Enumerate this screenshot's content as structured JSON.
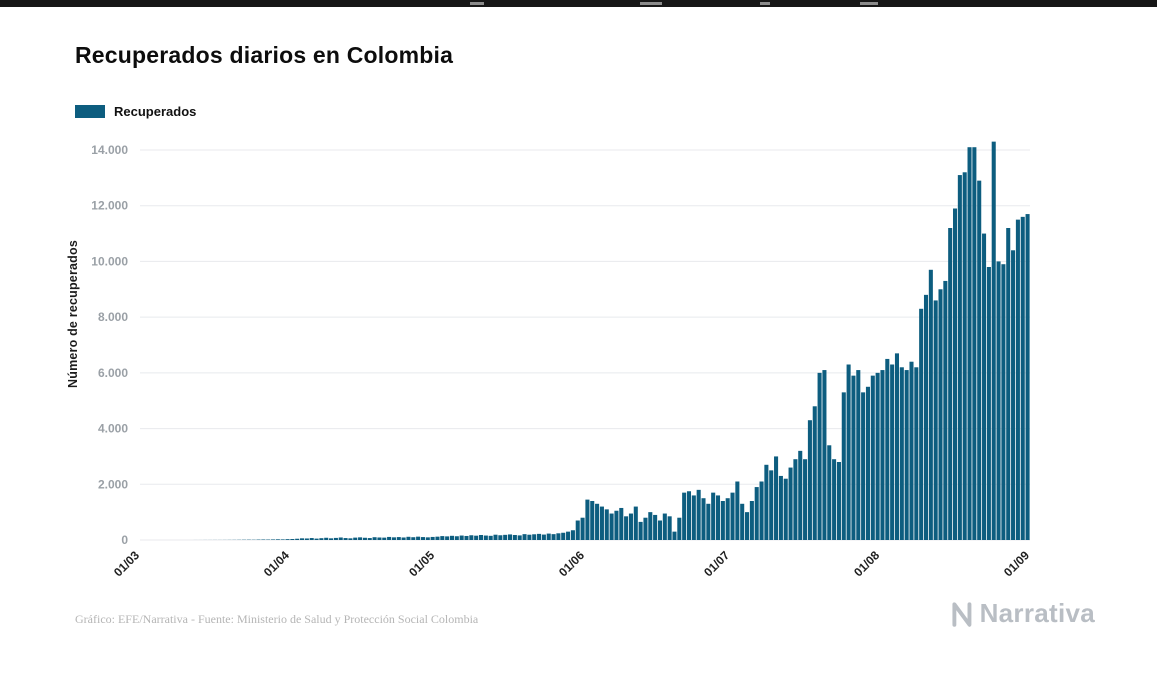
{
  "page": {
    "title": "Recuperados diarios en Colombia",
    "footer": "Gráfico: EFE/Narrativa - Fuente: Ministerio de Salud y Protección Social Colombia",
    "brand": "Narrativa"
  },
  "legend": {
    "label": "Recuperados",
    "color": "#0d5d7f"
  },
  "icons": {
    "brand_icon": "narrativa-logo-icon"
  },
  "chart_data": {
    "type": "bar",
    "title": "Recuperados diarios en Colombia",
    "xlabel": "",
    "ylabel": "Número de recuperados",
    "ylim": [
      0,
      14000
    ],
    "grid": true,
    "legend_position": "top-left",
    "bar_color": "#0d5d7f",
    "grid_color": "#e8eaed",
    "y_ticks": [
      0,
      2000,
      4000,
      6000,
      8000,
      10000,
      12000,
      14000
    ],
    "y_tick_labels": [
      "0",
      "2.000",
      "4.000",
      "6.000",
      "8.000",
      "10.000",
      "12.000",
      "14.000"
    ],
    "x_tick_labels": [
      "01/03",
      "01/04",
      "01/05",
      "01/06",
      "01/07",
      "01/08",
      "01/09"
    ],
    "x_tick_positions": [
      0,
      31,
      61,
      92,
      122,
      153,
      184
    ],
    "x_start": "01/03",
    "x_end": "01/09",
    "frequency": "daily",
    "series": [
      {
        "name": "Recuperados",
        "color": "#0d5d7f",
        "values": [
          0,
          0,
          0,
          0,
          0,
          0,
          0,
          0,
          0,
          0,
          0,
          1,
          1,
          2,
          2,
          3,
          3,
          4,
          5,
          6,
          8,
          10,
          12,
          10,
          15,
          18,
          16,
          20,
          25,
          22,
          30,
          35,
          45,
          60,
          55,
          70,
          50,
          65,
          80,
          60,
          75,
          90,
          70,
          60,
          85,
          95,
          80,
          70,
          100,
          90,
          85,
          110,
          95,
          105,
          90,
          115,
          100,
          120,
          105,
          95,
          110,
          120,
          140,
          130,
          150,
          135,
          160,
          145,
          170,
          155,
          180,
          160,
          150,
          190,
          170,
          185,
          200,
          180,
          165,
          210,
          190,
          205,
          220,
          195,
          230,
          210,
          240,
          260,
          300,
          350,
          700,
          800,
          1450,
          1400,
          1300,
          1200,
          1100,
          950,
          1050,
          1150,
          850,
          950,
          1200,
          650,
          800,
          1000,
          900,
          700,
          950,
          850,
          300,
          800,
          1700,
          1750,
          1600,
          1800,
          1500,
          1300,
          1700,
          1600,
          1400,
          1500,
          1700,
          2100,
          1300,
          1000,
          1400,
          1900,
          2100,
          2700,
          2500,
          3000,
          2300,
          2200,
          2600,
          2900,
          3200,
          2900,
          4300,
          4800,
          6000,
          6100,
          3400,
          2900,
          2800,
          5300,
          6300,
          5900,
          6100,
          5300,
          5500,
          5900,
          6000,
          6100,
          6500,
          6300,
          6700,
          6200,
          6100,
          6400,
          6200,
          8300,
          8800,
          9700,
          8600,
          9000,
          9300,
          11200,
          11900,
          13100,
          13200,
          14100,
          14100,
          12900,
          11000,
          9800,
          14300,
          10000,
          9900,
          11200,
          10400,
          11500,
          11600,
          11700
        ]
      }
    ]
  }
}
